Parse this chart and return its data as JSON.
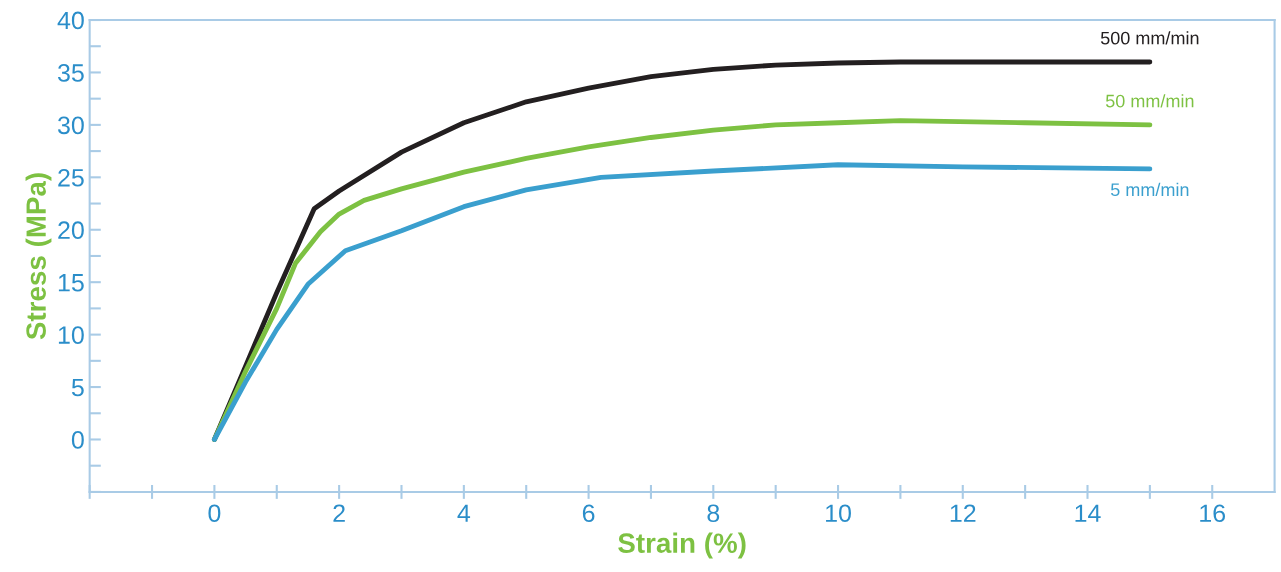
{
  "chart_data": {
    "type": "line",
    "xlabel": "Strain (%)",
    "ylabel": "Stress (MPa)",
    "xlim": [
      -2,
      17
    ],
    "ylim": [
      -5,
      40
    ],
    "xticks": [
      {
        "value": -2,
        "label": null
      },
      {
        "value": -1,
        "label": null
      },
      0,
      {
        "value": 1,
        "label": null
      },
      2,
      {
        "value": 3,
        "label": null
      },
      4,
      {
        "value": 5,
        "label": null
      },
      6,
      {
        "value": 7,
        "label": null
      },
      8,
      {
        "value": 9,
        "label": null
      },
      10,
      {
        "value": 11,
        "label": null
      },
      12,
      {
        "value": 13,
        "label": null
      },
      14,
      {
        "value": 15,
        "label": null
      },
      16
    ],
    "yticks": [
      {
        "value": -5,
        "label": null
      },
      {
        "value": -2.5,
        "label": null
      },
      0,
      {
        "value": 2.5,
        "label": null
      },
      5,
      {
        "value": 7.5,
        "label": null
      },
      10,
      {
        "value": 12.5,
        "label": null
      },
      15,
      {
        "value": 17.5,
        "label": null
      },
      20,
      {
        "value": 22.5,
        "label": null
      },
      25,
      {
        "value": 27.5,
        "label": null
      },
      30,
      {
        "value": 32.5,
        "label": null
      },
      35,
      {
        "value": 37.5,
        "label": null
      },
      40
    ],
    "grid": false,
    "legend": false,
    "marker": "none",
    "line_style": "solid",
    "series": [
      {
        "name": "500 mm/min",
        "color": "#231f20",
        "x": [
          0,
          0.5,
          1,
          1.6,
          2,
          3,
          4,
          5,
          6,
          7,
          8,
          9,
          10,
          11,
          15
        ],
        "values": [
          0,
          7,
          14,
          22,
          23.7,
          27.4,
          30.2,
          32.2,
          33.5,
          34.6,
          35.3,
          35.7,
          35.9,
          36,
          36
        ]
      },
      {
        "name": "50 mm/min",
        "color": "#7dc142",
        "x": [
          0,
          0.5,
          1,
          1.3,
          1.7,
          2,
          2.4,
          3,
          4,
          5,
          6,
          7,
          8,
          9,
          10,
          11,
          13,
          15
        ],
        "values": [
          0,
          6.5,
          12.5,
          16.8,
          19.8,
          21.5,
          22.8,
          23.9,
          25.5,
          26.8,
          27.9,
          28.8,
          29.5,
          30,
          30.2,
          30.4,
          30.2,
          30
        ]
      },
      {
        "name": "5 mm/min",
        "color": "#3a9fce",
        "x": [
          0,
          0.5,
          1,
          1.5,
          2.1,
          3,
          4,
          5,
          6.2,
          8,
          10,
          12,
          15
        ],
        "values": [
          0,
          5.5,
          10.5,
          14.8,
          18,
          19.9,
          22.2,
          23.8,
          25,
          25.6,
          26.2,
          26,
          25.8
        ]
      }
    ]
  }
}
